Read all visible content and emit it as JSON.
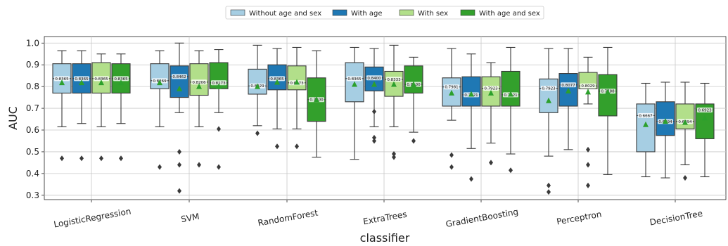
{
  "chart_data": {
    "type": "box",
    "xlabel": "classifier",
    "ylabel": "AUC",
    "ylim": [
      0.28,
      1.03
    ],
    "yticks": [
      "0.3",
      "0.4",
      "0.5",
      "0.6",
      "0.7",
      "0.8",
      "0.9",
      "1.0"
    ],
    "grid": true,
    "legend_placement": "top-center",
    "categories": [
      "LogisticRegression",
      "SVM",
      "RandomForest",
      "ExtraTrees",
      "GradientBoosting",
      "Perceptron",
      "DecisionTree"
    ],
    "series": [
      {
        "name": "Without age and sex",
        "color": "#a6cee3",
        "boxes": [
          {
            "whislo": 0.615,
            "q1": 0.77,
            "med": 0.8365,
            "q3": 0.905,
            "whishi": 0.965,
            "mean": 0.818,
            "fliers": [
              0.47
            ],
            "label": "0.8365"
          },
          {
            "whislo": 0.615,
            "q1": 0.79,
            "med": 0.8269,
            "q3": 0.905,
            "whishi": 0.965,
            "mean": 0.818,
            "fliers": [
              0.43
            ],
            "label": "0.8269"
          },
          {
            "whislo": 0.62,
            "q1": 0.765,
            "med": 0.8029,
            "q3": 0.88,
            "whishi": 0.99,
            "mean": 0.8,
            "fliers": [
              0.585
            ],
            "label": "0.8029"
          },
          {
            "whislo": 0.465,
            "q1": 0.73,
            "med": 0.8365,
            "q3": 0.91,
            "whishi": 0.98,
            "mean": 0.81,
            "fliers": [],
            "label": "0.8365"
          },
          {
            "whislo": 0.645,
            "q1": 0.71,
            "med": 0.7981,
            "q3": 0.84,
            "whishi": 0.975,
            "mean": 0.77,
            "fliers": [
              0.485,
              0.43
            ],
            "label": "0.7981"
          },
          {
            "whislo": 0.48,
            "q1": 0.68,
            "med": 0.7923,
            "q3": 0.835,
            "whishi": 0.975,
            "mean": 0.735,
            "fliers": [
              0.345,
              0.315
            ],
            "label": "0.7923"
          },
          {
            "whislo": 0.385,
            "q1": 0.5,
            "med": 0.6667,
            "q3": 0.72,
            "whishi": 0.815,
            "mean": 0.625,
            "fliers": [],
            "label": "0.6667"
          }
        ]
      },
      {
        "name": "With age",
        "color": "#1f78b4",
        "boxes": [
          {
            "whislo": 0.63,
            "q1": 0.77,
            "med": 0.8365,
            "q3": 0.905,
            "whishi": 0.965,
            "mean": 0.818,
            "fliers": [
              0.47
            ],
            "label": "0.8365"
          },
          {
            "whislo": 0.68,
            "q1": 0.75,
            "med": 0.8462,
            "q3": 0.895,
            "whishi": 1.0,
            "mean": 0.79,
            "fliers": [
              0.5,
              0.44,
              0.32
            ],
            "label": "0.8462"
          },
          {
            "whislo": 0.605,
            "q1": 0.785,
            "med": 0.8365,
            "q3": 0.9,
            "whishi": 0.975,
            "mean": 0.82,
            "fliers": [
              0.525
            ],
            "label": "0.8365"
          },
          {
            "whislo": 0.615,
            "q1": 0.78,
            "med": 0.84,
            "q3": 0.89,
            "whishi": 0.975,
            "mean": 0.81,
            "fliers": [
              0.685,
              0.565,
              0.55
            ],
            "label": "0.8400"
          },
          {
            "whislo": 0.515,
            "q1": 0.71,
            "med": 0.7621,
            "q3": 0.845,
            "whishi": 0.95,
            "mean": 0.765,
            "fliers": [
              0.375
            ],
            "label": "0.7621"
          },
          {
            "whislo": 0.51,
            "q1": 0.71,
            "med": 0.8077,
            "q3": 0.86,
            "whishi": 0.975,
            "mean": 0.78,
            "fliers": [],
            "label": "0.8077"
          },
          {
            "whislo": 0.38,
            "q1": 0.575,
            "med": 0.6394,
            "q3": 0.73,
            "whishi": 0.82,
            "mean": 0.64,
            "fliers": [],
            "label": "0.6394"
          }
        ]
      },
      {
        "name": "With sex",
        "color": "#b2df8a",
        "boxes": [
          {
            "whislo": 0.615,
            "q1": 0.77,
            "med": 0.8365,
            "q3": 0.91,
            "whishi": 0.95,
            "mean": 0.818,
            "fliers": [
              0.47
            ],
            "label": "0.8365"
          },
          {
            "whislo": 0.615,
            "q1": 0.76,
            "med": 0.8206,
            "q3": 0.905,
            "whishi": 0.965,
            "mean": 0.8,
            "fliers": [
              0.44
            ],
            "label": "0.8206"
          },
          {
            "whislo": 0.605,
            "q1": 0.785,
            "med": 0.8173,
            "q3": 0.895,
            "whishi": 0.98,
            "mean": 0.82,
            "fliers": [
              0.525
            ],
            "label": "0.8173"
          },
          {
            "whislo": 0.615,
            "q1": 0.755,
            "med": 0.8333,
            "q3": 0.87,
            "whishi": 0.99,
            "mean": 0.81,
            "fliers": [
              0.49,
              0.475
            ],
            "label": "0.8333"
          },
          {
            "whislo": 0.54,
            "q1": 0.71,
            "med": 0.7923,
            "q3": 0.845,
            "whishi": 0.91,
            "mean": 0.77,
            "fliers": [
              0.45
            ],
            "label": "0.7923"
          },
          {
            "whislo": 0.72,
            "q1": 0.79,
            "med": 0.8029,
            "q3": 0.865,
            "whishi": 0.935,
            "mean": 0.775,
            "fliers": [
              0.51,
              0.44,
              0.345
            ],
            "label": "0.8029"
          },
          {
            "whislo": 0.44,
            "q1": 0.605,
            "med": 0.6394,
            "q3": 0.72,
            "whishi": 0.82,
            "mean": 0.635,
            "fliers": [
              0.38
            ],
            "label": "0.6394"
          }
        ]
      },
      {
        "name": "With age and sex",
        "color": "#33a02c",
        "boxes": [
          {
            "whislo": 0.63,
            "q1": 0.77,
            "med": 0.8365,
            "q3": 0.905,
            "whishi": 0.95,
            "mean": 0.818,
            "fliers": [
              0.47
            ],
            "label": "0.8365"
          },
          {
            "whislo": 0.68,
            "q1": 0.79,
            "med": 0.8173,
            "q3": 0.91,
            "whishi": 0.97,
            "mean": 0.8,
            "fliers": [
              0.605,
              0.43
            ],
            "label": "0.8173"
          },
          {
            "whislo": 0.475,
            "q1": 0.64,
            "med": 0.74,
            "q3": 0.84,
            "whishi": 0.965,
            "mean": 0.74,
            "fliers": [],
            "label": "0.7400"
          },
          {
            "whislo": 0.59,
            "q1": 0.77,
            "med": 0.81,
            "q3": 0.895,
            "whishi": 0.935,
            "mean": 0.81,
            "fliers": [
              0.55
            ],
            "label": "0.8100"
          },
          {
            "whislo": 0.49,
            "q1": 0.71,
            "med": 0.7621,
            "q3": 0.87,
            "whishi": 0.98,
            "mean": 0.765,
            "fliers": [
              0.415
            ],
            "label": "0.7621"
          },
          {
            "whislo": 0.395,
            "q1": 0.665,
            "med": 0.7788,
            "q3": 0.855,
            "whishi": 0.98,
            "mean": 0.775,
            "fliers": [],
            "label": "0.7788"
          },
          {
            "whislo": 0.385,
            "q1": 0.56,
            "med": 0.6923,
            "q3": 0.72,
            "whishi": 0.815,
            "mean": 0.655,
            "fliers": [],
            "label": "0.6923"
          }
        ]
      }
    ]
  }
}
